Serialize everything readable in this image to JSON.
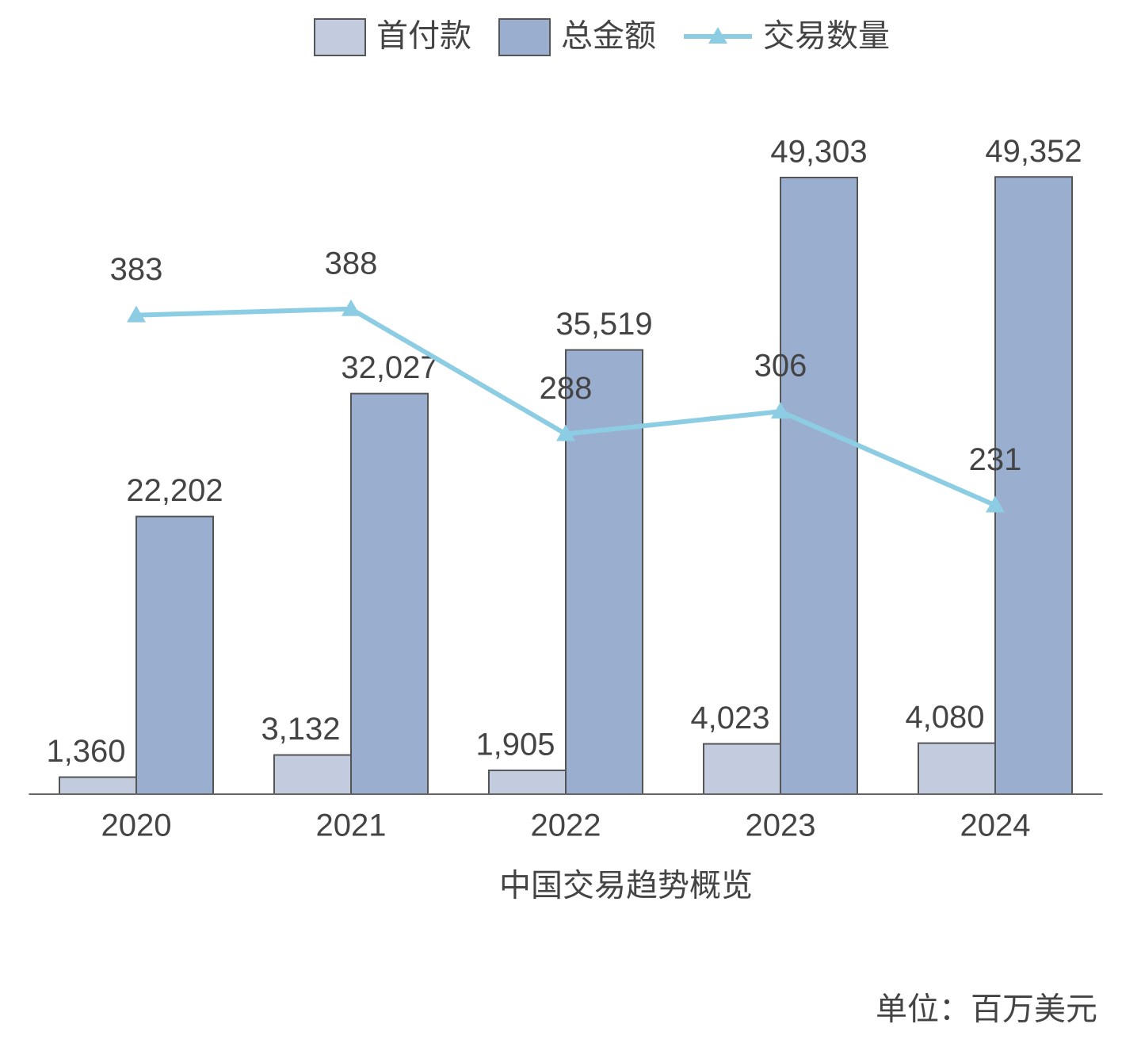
{
  "chart_data": {
    "type": "bar-line",
    "title": "中国交易趋势概览",
    "unit": "单位：百万美元",
    "categories": [
      "2020",
      "2021",
      "2022",
      "2023",
      "2024"
    ],
    "ylim": [
      0,
      50000
    ],
    "y2lim": [
      0,
      500
    ],
    "legend": "top",
    "series": [
      {
        "name": "首付款",
        "type": "bar",
        "color": "#c3cbdf",
        "values": [
          1360,
          3132,
          1905,
          4023,
          4080
        ],
        "value_labels": [
          "1,360",
          "3,132",
          "1,905",
          "4,023",
          "4,080"
        ]
      },
      {
        "name": "总金额",
        "type": "bar",
        "color": "#9aafd0",
        "values": [
          22202,
          32027,
          35519,
          49303,
          49352
        ],
        "value_labels": [
          "22,202",
          "32,027",
          "35,519",
          "49,303",
          "49,352"
        ]
      },
      {
        "name": "交易数量",
        "type": "line",
        "axis": "y2",
        "color": "#8ccde3",
        "values": [
          383,
          388,
          288,
          306,
          231
        ]
      }
    ]
  }
}
